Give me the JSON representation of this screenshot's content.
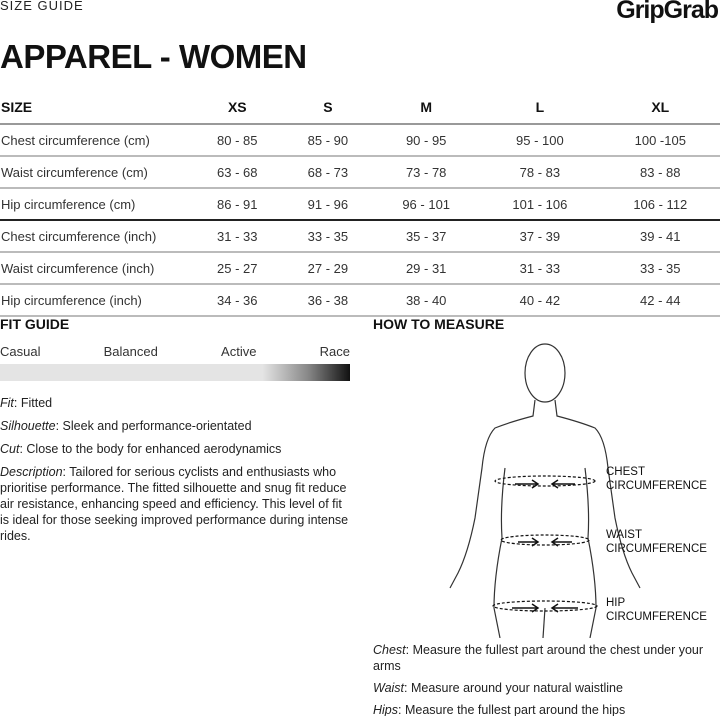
{
  "header": {
    "label": "SIZE GUIDE",
    "brand": "GripGrab",
    "title": "APPAREL - WOMEN"
  },
  "table": {
    "headers": [
      "SIZE",
      "XS",
      "S",
      "M",
      "L",
      "XL"
    ],
    "rows": [
      [
        "Chest circumference (cm)",
        "80 - 85",
        "85 - 90",
        "90 - 95",
        "95 - 100",
        "100 -105"
      ],
      [
        "Waist circumference (cm)",
        "63 - 68",
        "68 - 73",
        "73 - 78",
        "78 - 83",
        "83 - 88"
      ],
      [
        "Hip circumference (cm)",
        "86 - 91",
        "91 - 96",
        "96 - 101",
        "101 - 106",
        "106 - 112"
      ],
      [
        "Chest circumference (inch)",
        "31 - 33",
        "33 - 35",
        "35 - 37",
        "37 - 39",
        "39 - 41"
      ],
      [
        "Waist circumference (inch)",
        "25 - 27",
        "27 - 29",
        "29 - 31",
        "31 - 33",
        "33 - 35"
      ],
      [
        "Hip circumference (inch)",
        "34 - 36",
        "36 - 38",
        "38 - 40",
        "40 - 42",
        "42 - 44"
      ]
    ]
  },
  "fit_guide": {
    "title": "FIT GUIDE",
    "scale": [
      "Casual",
      "Balanced",
      "Active",
      "Race"
    ],
    "level": "Race",
    "fit": {
      "label": "Fit",
      "text": ": Fitted"
    },
    "silhouette": {
      "label": "Silhouette",
      "text": ": Sleek and performance-orientated"
    },
    "cut": {
      "label": "Cut",
      "text": ": Close to the body for enhanced aerodynamics"
    },
    "description": {
      "label": "Description",
      "text": ": Tailored for serious cyclists and enthusiasts who prioritise performance. The fitted silhouette and snug fit reduce air resistance, enhancing speed and efficiency. This level of fit is ideal for those seeking improved performance during intense rides."
    }
  },
  "how_to_measure": {
    "title": "HOW TO MEASURE",
    "labels": {
      "chest": "CHEST CIRCUMFERENCE",
      "waist": "WAIST CIRCUMFERENCE",
      "hip": "HIP CIRCUMFERENCE"
    },
    "notes": [
      {
        "label": "Chest",
        "text": ": Measure the fullest part around the chest under your arms"
      },
      {
        "label": "Waist",
        "text": ": Measure around your natural waistline"
      },
      {
        "label": "Hips",
        "text": ": Measure the fullest part around the hips"
      }
    ]
  }
}
